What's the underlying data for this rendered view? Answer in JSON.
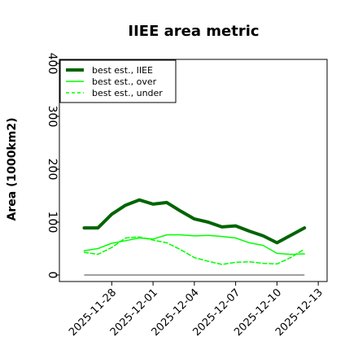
{
  "chart_data": {
    "type": "line",
    "title": "IIEE area metric",
    "xlabel": "",
    "ylabel": "Area (1000km2)",
    "ylim": [
      -5,
      410
    ],
    "yticks": [
      0,
      100,
      200,
      300,
      400
    ],
    "x": [
      "2025-11-26",
      "2025-11-27",
      "2025-11-28",
      "2025-11-29",
      "2025-11-30",
      "2025-12-01",
      "2025-12-02",
      "2025-12-03",
      "2025-12-04",
      "2025-12-05",
      "2025-12-06",
      "2025-12-07",
      "2025-12-08",
      "2025-12-09",
      "2025-12-10",
      "2025-12-11",
      "2025-12-12",
      "2025-12-13"
    ],
    "xticks": [
      "2025-11-28",
      "2025-12-01",
      "2025-12-04",
      "2025-12-07",
      "2025-12-10",
      "2025-12-13"
    ],
    "grid": false,
    "legend_position": "top-left",
    "baseline": {
      "y": 0,
      "color": "#808080"
    },
    "series": [
      {
        "name": "best est., IIEE",
        "color": "#006400",
        "style": "solid",
        "width": 4,
        "values": [
          89,
          89,
          115,
          132,
          142,
          134,
          137,
          121,
          106,
          100,
          91,
          93,
          83,
          74,
          61,
          75,
          89,
          null
        ]
      },
      {
        "name": "best est., over",
        "color": "#00ff00",
        "style": "solid",
        "width": 1.5,
        "values": [
          46,
          50,
          60,
          65,
          70,
          68,
          76,
          76,
          74,
          75,
          73,
          70,
          61,
          56,
          41,
          39,
          40,
          null
        ]
      },
      {
        "name": "best est., under",
        "color": "#00ff00",
        "style": "dashed",
        "width": 1.5,
        "values": [
          43,
          39,
          52,
          70,
          72,
          66,
          61,
          48,
          33,
          26,
          20,
          24,
          25,
          22,
          21,
          33,
          49,
          null
        ]
      }
    ]
  }
}
